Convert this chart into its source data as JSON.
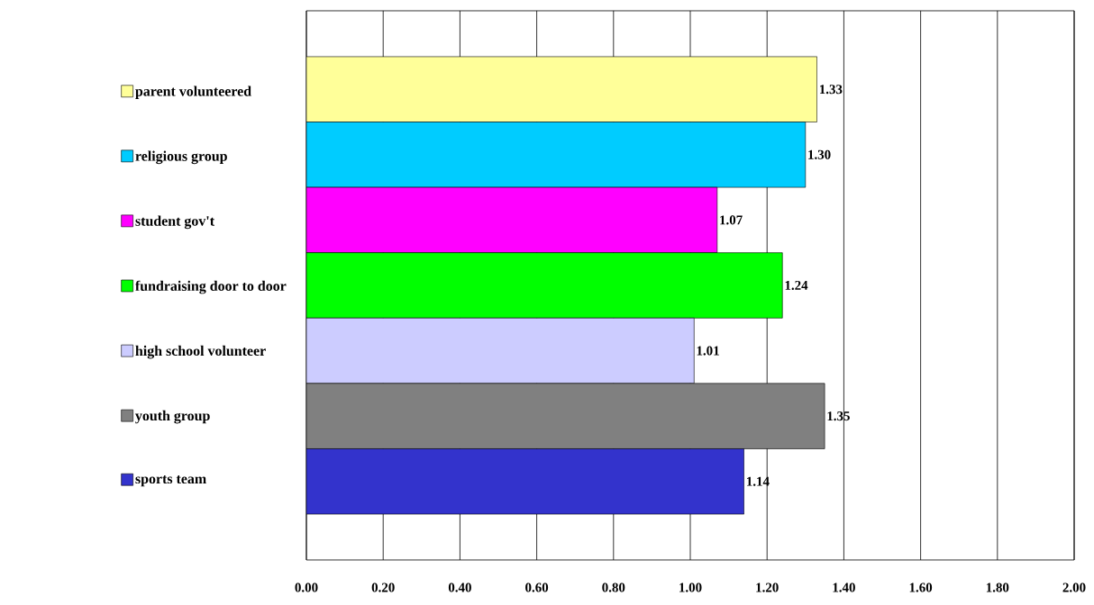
{
  "chart_data": {
    "type": "bar",
    "orientation": "horizontal",
    "categories": [
      null
    ],
    "series": [
      {
        "name": "parent volunteered",
        "color": "#ffff99",
        "values": [
          1.33
        ],
        "value_labels": [
          "1.33"
        ]
      },
      {
        "name": "religious group",
        "color": "#00ccff",
        "values": [
          1.3
        ],
        "value_labels": [
          "1.30"
        ]
      },
      {
        "name": "student gov't",
        "color": "#ff00ff",
        "values": [
          1.07
        ],
        "value_labels": [
          "1.07"
        ]
      },
      {
        "name": "fundraising door to door",
        "color": "#00ff00",
        "values": [
          1.24
        ],
        "value_labels": [
          "1.24"
        ]
      },
      {
        "name": "high school volunteer",
        "color": "#ccccff",
        "values": [
          1.01
        ],
        "value_labels": [
          "1.01"
        ]
      },
      {
        "name": "youth group",
        "color": "#808080",
        "values": [
          1.35
        ],
        "value_labels": [
          "1.35"
        ]
      },
      {
        "name": "sports team",
        "color": "#3333cc",
        "values": [
          1.14
        ],
        "value_labels": [
          "1.14"
        ]
      }
    ],
    "xlim": [
      0,
      2
    ],
    "xticks": [
      {
        "value": 0,
        "label": "0.00"
      },
      {
        "value": 0.2,
        "label": "0.20"
      },
      {
        "value": 0.4,
        "label": "0.40"
      },
      {
        "value": 0.6,
        "label": "0.60"
      },
      {
        "value": 0.8,
        "label": "0.80"
      },
      {
        "value": 1,
        "label": "1.00"
      },
      {
        "value": 1.2,
        "label": "1.20"
      },
      {
        "value": 1.4,
        "label": "1.40"
      },
      {
        "value": 1.6,
        "label": "1.60"
      },
      {
        "value": 1.8,
        "label": "1.80"
      },
      {
        "value": 2,
        "label": "2.00"
      }
    ],
    "grid": "x",
    "legend": "left"
  }
}
